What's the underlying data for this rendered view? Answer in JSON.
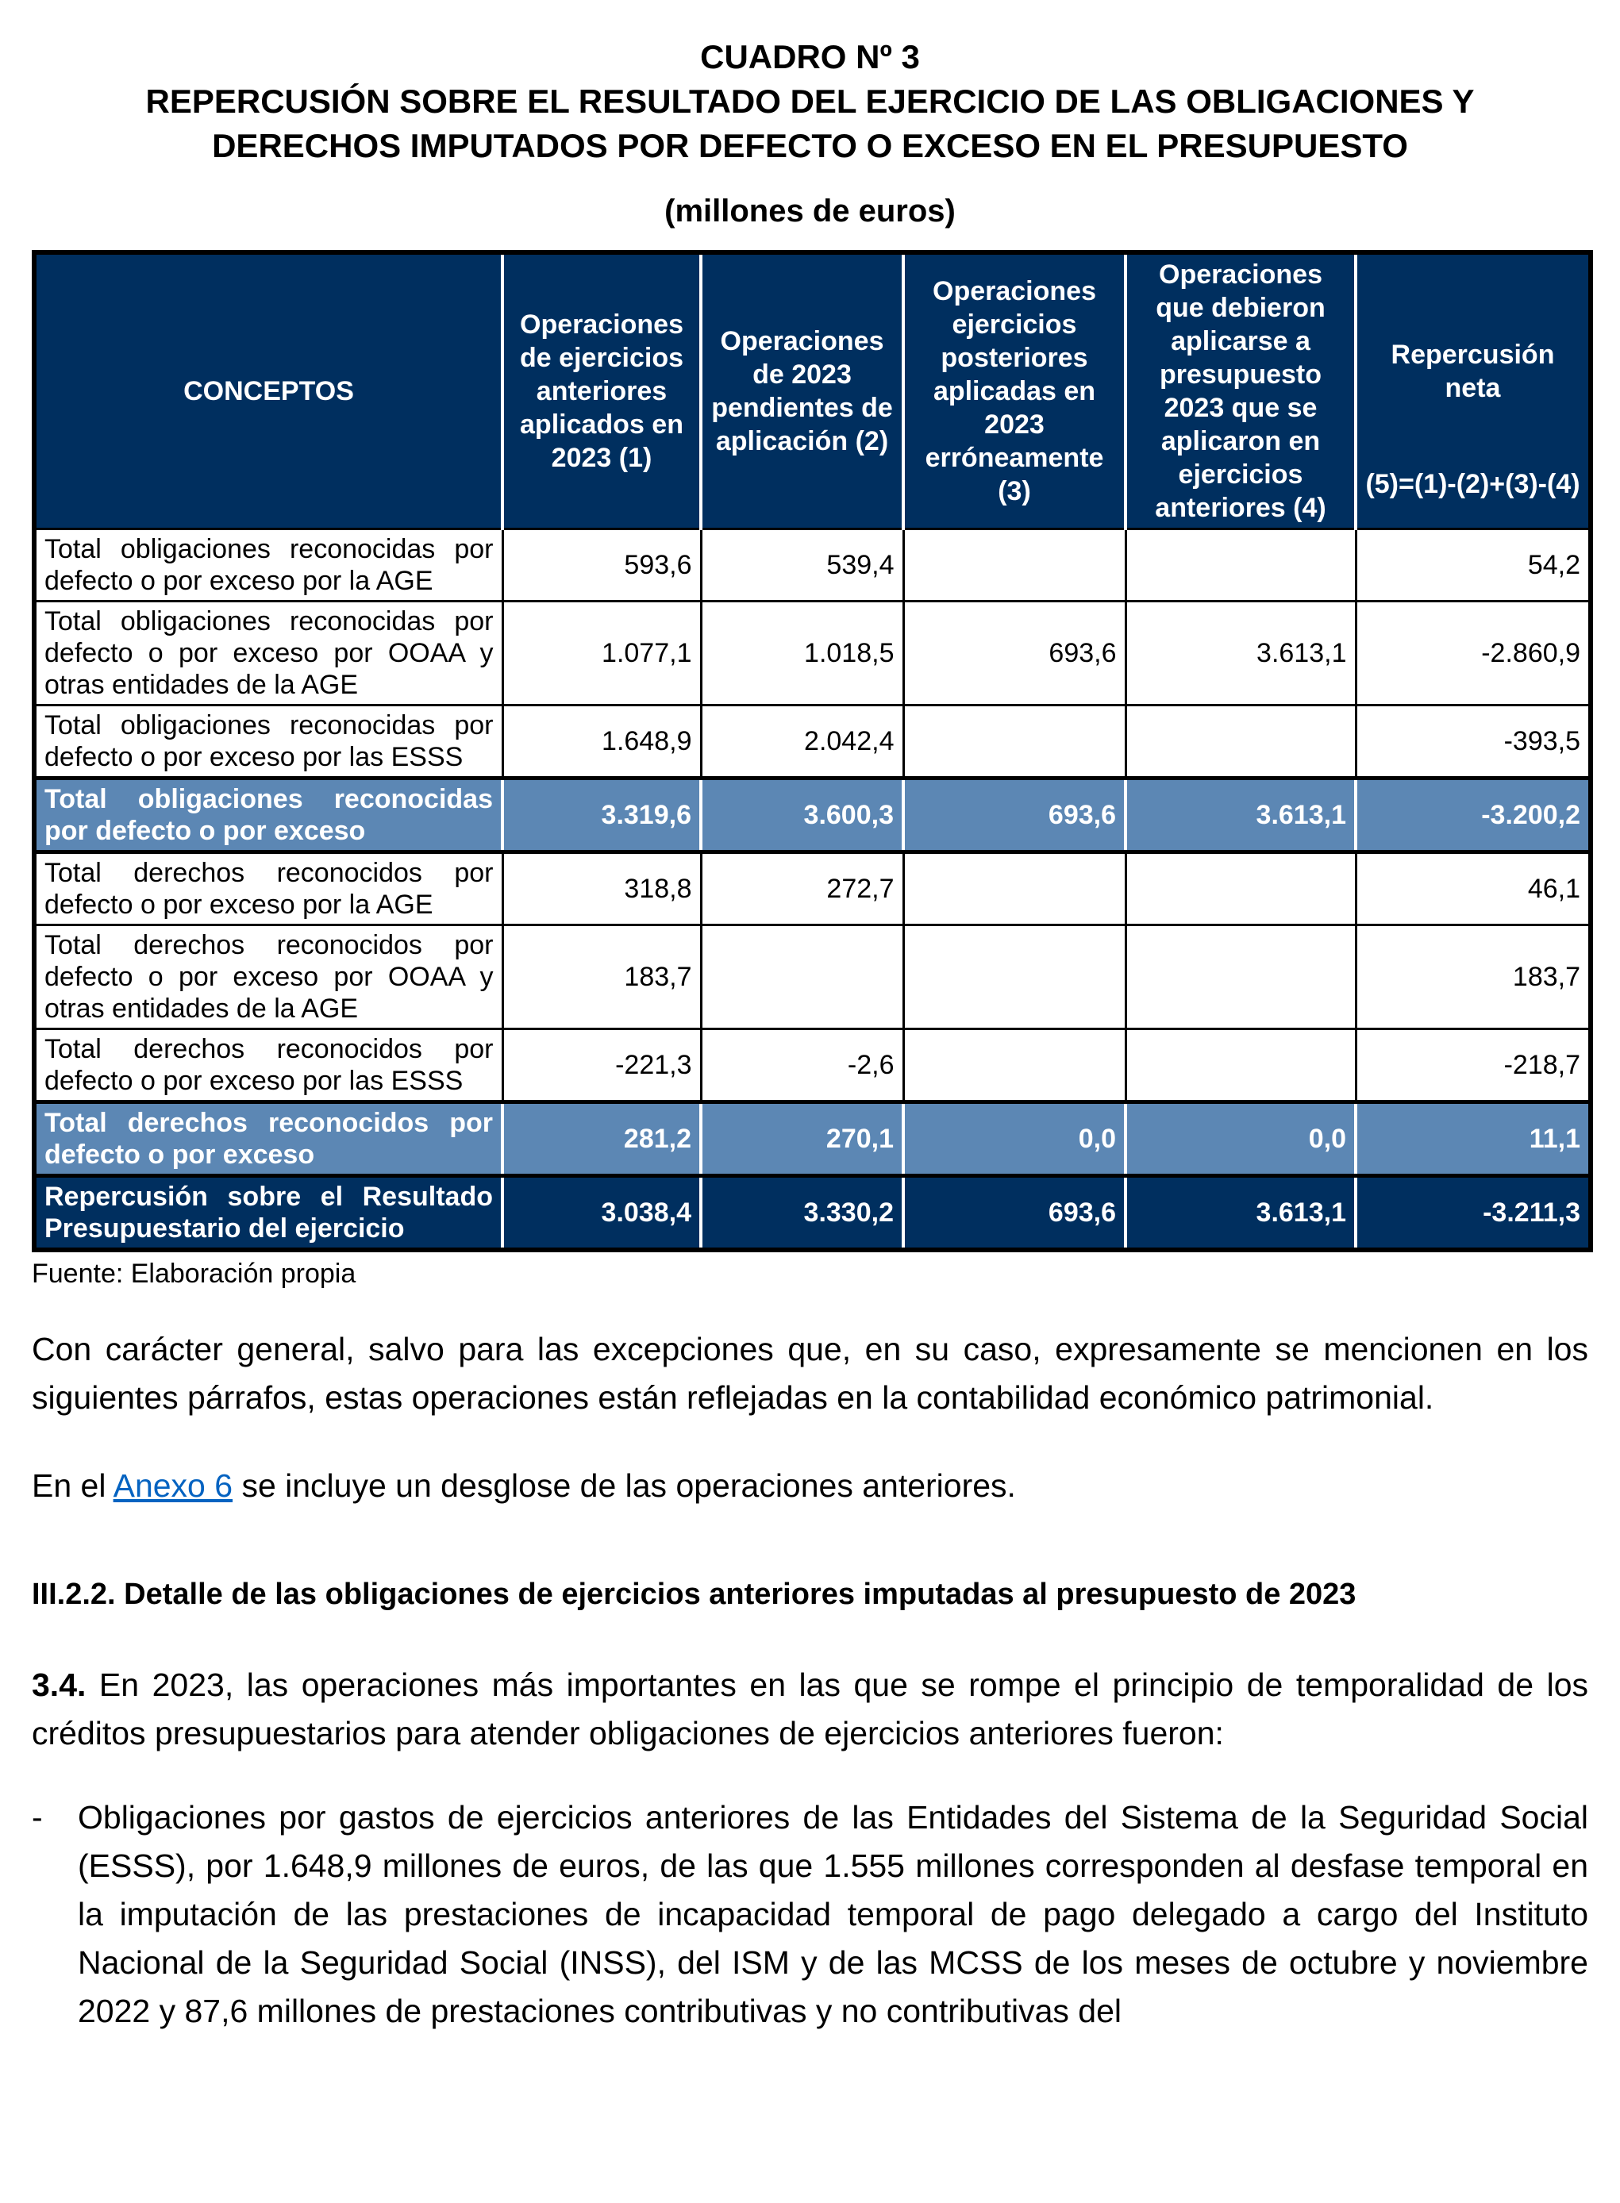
{
  "title": {
    "line1": "CUADRO Nº 3",
    "line2": "REPERCUSIÓN SOBRE EL RESULTADO DEL EJERCICIO DE LAS OBLIGACIONES Y",
    "line3": "DERECHOS IMPUTADOS POR DEFECTO O EXCESO EN EL PRESUPUESTO",
    "units": "(millones de euros)"
  },
  "colors": {
    "header_navy": "#002F5F",
    "total_steel_blue": "#5C87B4",
    "link_blue": "#0563C1",
    "border_black": "#000000"
  },
  "table": {
    "header": {
      "concepts": "CONCEPTOS",
      "col1": "Operaciones de ejercicios anteriores aplicados en 2023 (1)",
      "col2": "Operaciones de 2023 pendientes de aplicación (2)",
      "col3": "Operaciones ejercicios posteriores aplicadas en 2023 erróneamente (3)",
      "col4": "Operaciones que debieron aplicarse a presupuesto 2023 que se aplicaron en ejercicios anteriores (4)",
      "col5_title": "Repercusión neta",
      "col5_formula": "(5)=(1)-(2)+(3)-(4)"
    },
    "rows": [
      {
        "concept": "Total obligaciones reconocidas por defecto o por exceso por la AGE",
        "values": [
          "593,6",
          "539,4",
          "",
          "",
          "54,2"
        ]
      },
      {
        "concept": "Total obligaciones reconocidas por defecto o por exceso por OOAA y otras entidades de la AGE",
        "values": [
          "1.077,1",
          "1.018,5",
          "693,6",
          "3.613,1",
          "-2.860,9"
        ]
      },
      {
        "concept": "Total obligaciones reconocidas por defecto o por exceso por las ESSS",
        "values": [
          "1.648,9",
          "2.042,4",
          "",
          "",
          "-393,5"
        ]
      },
      {
        "concept": "Total obligaciones reconocidas por defecto o por exceso",
        "values": [
          "3.319,6",
          "3.600,3",
          "693,6",
          "3.613,1",
          "-3.200,2"
        ]
      },
      {
        "concept": "Total derechos reconocidos por defecto o por exceso por la AGE",
        "values": [
          "318,8",
          "272,7",
          "",
          "",
          "46,1"
        ]
      },
      {
        "concept": "Total derechos reconocidos por defecto o por exceso por OOAA y otras entidades de la AGE",
        "values": [
          "183,7",
          "",
          "",
          "",
          "183,7"
        ]
      },
      {
        "concept": "Total derechos reconocidos por defecto o por exceso por las ESSS",
        "values": [
          "-221,3",
          "-2,6",
          "",
          "",
          "-218,7"
        ]
      },
      {
        "concept": "Total derechos reconocidos por defecto o por exceso",
        "values": [
          "281,2",
          "270,1",
          "0,0",
          "0,0",
          "11,1"
        ]
      },
      {
        "concept": "Repercusión sobre el Resultado Presupuestario del ejercicio",
        "values": [
          "3.038,4",
          "3.330,2",
          "693,6",
          "3.613,1",
          "-3.211,3"
        ]
      }
    ],
    "source": "Fuente: Elaboración propia"
  },
  "paragraphs": {
    "para1": "Con carácter general, salvo para las excepciones que, en su caso, expresamente se mencionen en los siguientes párrafos, estas operaciones están reflejadas en la contabilidad económico patrimonial.",
    "para2_pre": "En el ",
    "para2_link": "Anexo 6",
    "para2_post": " se incluye un desglose de las operaciones anteriores.",
    "section_heading": "III.2.2. Detalle de las obligaciones de ejercicios anteriores imputadas al presupuesto de 2023",
    "para3_num": "3.4.",
    "para3_rest": " En 2023, las operaciones más importantes en las que se rompe el principio de temporalidad de los créditos presupuestarios para atender obligaciones de ejercicios anteriores fueron:",
    "bullet_marker": "-",
    "bullet_text": "Obligaciones por gastos de ejercicios anteriores de las Entidades del Sistema de la Seguridad Social (ESSS), por 1.648,9 millones de euros, de las que 1.555 millones corresponden al desfase temporal en la imputación de las prestaciones de incapacidad temporal de pago delegado a cargo del Instituto Nacional de la Seguridad Social (INSS), del ISM y de las MCSS de los meses de octubre y noviembre 2022 y 87,6 millones de prestaciones contributivas y no contributivas del"
  }
}
